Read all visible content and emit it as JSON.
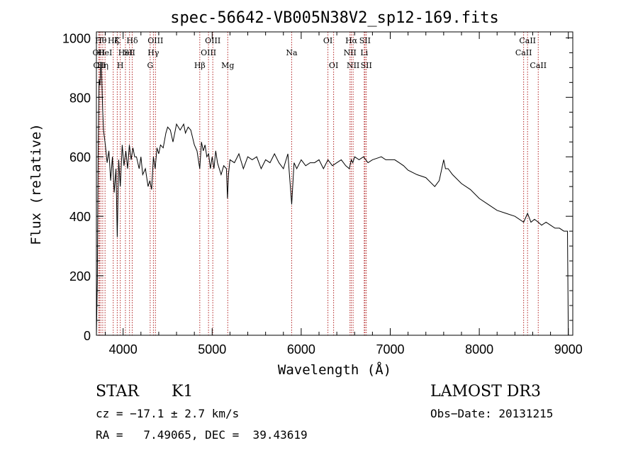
{
  "chart_data": {
    "type": "line",
    "title": "spec-56642-VB005N38V2_sp12-169.fits",
    "xlabel": "Wavelength (Å)",
    "ylabel": "Flux (relative)",
    "xlim": [
      3700,
      9050
    ],
    "ylim": [
      0,
      1020
    ],
    "x_ticks": [
      4000,
      5000,
      6000,
      7000,
      8000,
      9000
    ],
    "x_tick_labels": [
      "4000",
      "5000",
      "6000",
      "7000",
      "8000",
      "9000"
    ],
    "y_ticks": [
      0,
      200,
      400,
      600,
      800,
      1000
    ],
    "y_tick_labels": [
      "0",
      "200",
      "400",
      "600",
      "800",
      "1000"
    ],
    "grid": false,
    "series": [
      {
        "x": [
          3700,
          3710,
          3720,
          3730,
          3740,
          3750,
          3760,
          3770,
          3780,
          3800,
          3820,
          3840,
          3860,
          3880,
          3900,
          3920,
          3934,
          3950,
          3968,
          3990,
          4010,
          4030,
          4050,
          4070,
          4090,
          4110,
          4130,
          4150,
          4180,
          4200,
          4220,
          4250,
          4280,
          4300,
          4320,
          4340,
          4360,
          4380,
          4400,
          4420,
          4450,
          4480,
          4500,
          4530,
          4560,
          4600,
          4640,
          4680,
          4700,
          4730,
          4760,
          4800,
          4830,
          4861,
          4880,
          4900,
          4920,
          4940,
          4960,
          4980,
          5000,
          5020,
          5040,
          5060,
          5080,
          5100,
          5130,
          5160,
          5172,
          5183,
          5200,
          5250,
          5300,
          5350,
          5400,
          5450,
          5500,
          5550,
          5600,
          5650,
          5700,
          5750,
          5800,
          5850,
          5893,
          5920,
          5950,
          6000,
          6050,
          6100,
          6150,
          6200,
          6250,
          6300,
          6350,
          6400,
          6450,
          6500,
          6540,
          6563,
          6580,
          6600,
          6650,
          6700,
          6750,
          6800,
          6850,
          6900,
          6950,
          7000,
          7050,
          7100,
          7150,
          7200,
          7300,
          7400,
          7500,
          7550,
          7600,
          7620,
          7650,
          7700,
          7800,
          7900,
          8000,
          8100,
          8200,
          8300,
          8400,
          8498,
          8542,
          8580,
          8620,
          8662,
          8700,
          8750,
          8800,
          8850,
          8900,
          8950,
          8990,
          9000,
          9010
        ],
        "y": [
          0,
          180,
          620,
          860,
          840,
          920,
          870,
          760,
          690,
          640,
          580,
          620,
          520,
          600,
          480,
          560,
          330,
          590,
          500,
          640,
          570,
          620,
          560,
          640,
          590,
          630,
          600,
          600,
          560,
          600,
          540,
          560,
          500,
          520,
          490,
          600,
          560,
          630,
          610,
          640,
          630,
          680,
          700,
          690,
          650,
          710,
          690,
          710,
          680,
          700,
          690,
          640,
          620,
          560,
          650,
          620,
          640,
          600,
          610,
          560,
          600,
          560,
          620,
          580,
          560,
          540,
          570,
          560,
          460,
          540,
          590,
          580,
          610,
          560,
          600,
          590,
          600,
          560,
          590,
          580,
          610,
          580,
          560,
          610,
          440,
          580,
          560,
          590,
          570,
          580,
          580,
          590,
          560,
          590,
          570,
          580,
          590,
          570,
          560,
          590,
          580,
          600,
          590,
          600,
          580,
          590,
          595,
          600,
          590,
          590,
          590,
          580,
          570,
          555,
          540,
          530,
          500,
          520,
          590,
          560,
          560,
          540,
          510,
          490,
          460,
          440,
          420,
          410,
          400,
          380,
          410,
          380,
          390,
          380,
          370,
          380,
          370,
          360,
          360,
          350,
          350,
          0,
          0
        ]
      }
    ],
    "lines": [
      {
        "x": 3727,
        "label": "OII",
        "row": 2
      },
      {
        "x": 3734,
        "label": "OII",
        "row": 3
      },
      {
        "x": 3750,
        "label": "Hθ",
        "row": 1
      },
      {
        "x": 3771,
        "label": "Hη",
        "row": 3
      },
      {
        "x": 3797,
        "label": "HeI",
        "row": 2
      },
      {
        "x": 3889,
        "label": "Hζ",
        "row": 1
      },
      {
        "x": 3934,
        "label": "K",
        "row": 1
      },
      {
        "x": 3968,
        "label": "H",
        "row": 3
      },
      {
        "x": 4026,
        "label": "HeI",
        "row": 2
      },
      {
        "x": 4072,
        "label": "SII",
        "row": 2
      },
      {
        "x": 4102,
        "label": "Hδ",
        "row": 1
      },
      {
        "x": 4304,
        "label": "G",
        "row": 3
      },
      {
        "x": 4340,
        "label": "Hγ",
        "row": 2
      },
      {
        "x": 4363,
        "label": "OIII",
        "row": 1
      },
      {
        "x": 4861,
        "label": "Hβ",
        "row": 3
      },
      {
        "x": 4959,
        "label": "OIII",
        "row": 2
      },
      {
        "x": 5007,
        "label": "OIII",
        "row": 1
      },
      {
        "x": 5175,
        "label": "Mg",
        "row": 3
      },
      {
        "x": 5893,
        "label": "Na",
        "row": 2
      },
      {
        "x": 6300,
        "label": "OI",
        "row": 1
      },
      {
        "x": 6364,
        "label": "OI",
        "row": 3
      },
      {
        "x": 6548,
        "label": "NII",
        "row": 2
      },
      {
        "x": 6563,
        "label": "Hα",
        "row": 1
      },
      {
        "x": 6583,
        "label": "NII",
        "row": 3
      },
      {
        "x": 6708,
        "label": "Li",
        "row": 2
      },
      {
        "x": 6716,
        "label": "SII",
        "row": 1
      },
      {
        "x": 6731,
        "label": "SII",
        "row": 3
      },
      {
        "x": 8498,
        "label": "CaII",
        "row": 2
      },
      {
        "x": 8542,
        "label": "CaII",
        "row": 1
      },
      {
        "x": 8662,
        "label": "CaII",
        "row": 3
      }
    ],
    "line_color": "#b22222",
    "spectrum_color": "#000000"
  },
  "info": {
    "class": "STAR",
    "subclass": "K1",
    "survey": "LAMOST DR3",
    "cz": "cz = −17.1 ± 2.7 km/s",
    "obs_date": "Obs−Date: 20131215",
    "radec": "RA =   7.49065, DEC =  39.43619"
  }
}
